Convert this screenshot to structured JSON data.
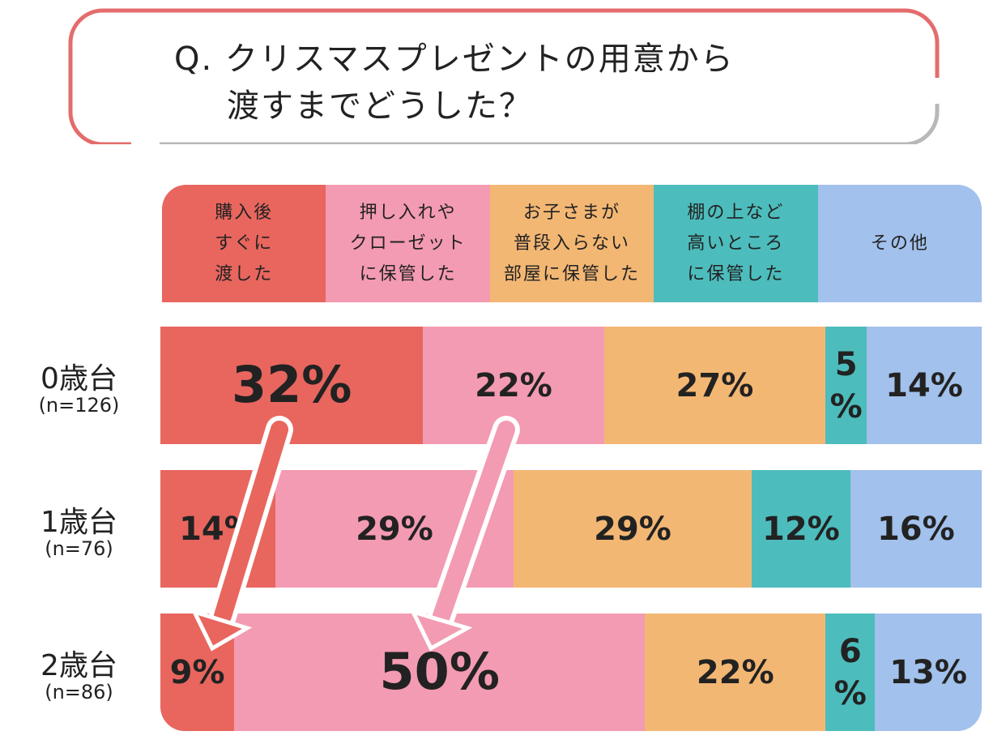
{
  "chart_data": {
    "type": "stacked-bar-100",
    "title_lines": [
      "Q. クリスマスプレゼントの用意から",
      "渡すまでどうした？"
    ],
    "categories": [
      "0歳台",
      "1歳台",
      "2歳台"
    ],
    "sample_sizes": [
      "(n=126)",
      "(n=76)",
      "(n=86)"
    ],
    "series": [
      {
        "name": "購入後\nすぐに\n渡した",
        "color": "#e8665e",
        "values": [
          32,
          14,
          9
        ],
        "value_labels": [
          "32%",
          "14%",
          "9%"
        ]
      },
      {
        "name": "押し入れや\nクローゼット\nに保管した",
        "color": "#f39bb2",
        "values": [
          22,
          29,
          50
        ],
        "value_labels": [
          "22%",
          "29%",
          "50%"
        ]
      },
      {
        "name": "お子さまが\n普段入らない\n部屋に保管した",
        "color": "#f3b774",
        "values": [
          27,
          29,
          22
        ],
        "value_labels": [
          "27%",
          "29%",
          "22%"
        ]
      },
      {
        "name": "棚の上など\n高いところ\nに保管した",
        "color": "#4dbcbc",
        "values": [
          5,
          12,
          6
        ],
        "value_labels": [
          "5%",
          "12%",
          "6%"
        ]
      },
      {
        "name": "その他",
        "color": "#a2c1ec",
        "values": [
          14,
          16,
          13
        ],
        "value_labels": [
          "14%",
          "16%",
          "13%"
        ]
      }
    ]
  }
}
